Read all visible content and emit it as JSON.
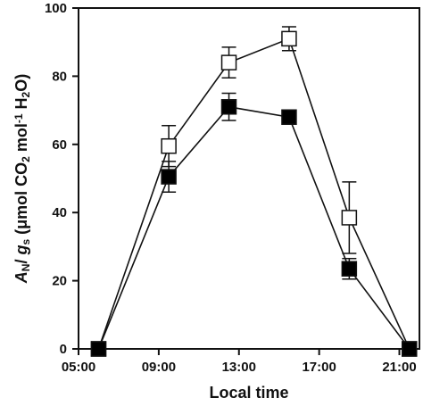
{
  "chart_data": {
    "type": "line",
    "xlabel": "Local time",
    "ylabel": {
      "parts": [
        {
          "text": "A",
          "style": "italic"
        },
        {
          "text": "N",
          "style": "sub"
        },
        {
          "text": "/ ",
          "style": "normal"
        },
        {
          "text": "g",
          "style": "italic"
        },
        {
          "text": "s",
          "style": "sub"
        },
        {
          "text": " (μmol CO",
          "style": "normal"
        },
        {
          "text": "2",
          "style": "sub"
        },
        {
          "text": " mol",
          "style": "normal"
        },
        {
          "text": "-1",
          "style": "sup"
        },
        {
          "text": " H",
          "style": "normal"
        },
        {
          "text": "2",
          "style": "sub"
        },
        {
          "text": "O)",
          "style": "normal"
        }
      ]
    },
    "x_tick_labels": [
      "05:00",
      "09:00",
      "13:00",
      "17:00",
      "21:00"
    ],
    "x_tick_values": [
      5,
      9,
      13,
      17,
      21
    ],
    "y_tick_labels": [
      "0",
      "20",
      "40",
      "60",
      "80",
      "100"
    ],
    "y_tick_values": [
      0,
      20,
      40,
      60,
      80,
      100
    ],
    "xlim": [
      5,
      22
    ],
    "ylim": [
      0,
      100
    ],
    "grid": false,
    "series": [
      {
        "marker": "open-square",
        "color": "#ffffff",
        "points": [
          {
            "x": 6.0,
            "y": 0,
            "err": 0
          },
          {
            "x": 9.5,
            "y": 59.5,
            "err": 6
          },
          {
            "x": 12.5,
            "y": 84,
            "err": 4.5
          },
          {
            "x": 15.5,
            "y": 91,
            "err": 3.5
          },
          {
            "x": 18.5,
            "y": 38.5,
            "err": 10.5
          },
          {
            "x": 21.5,
            "y": 0,
            "err": 0
          }
        ]
      },
      {
        "marker": "filled-square",
        "color": "#000000",
        "points": [
          {
            "x": 6.0,
            "y": 0,
            "err": 0
          },
          {
            "x": 9.5,
            "y": 50.5,
            "err": 4.5
          },
          {
            "x": 12.5,
            "y": 71,
            "err": 4
          },
          {
            "x": 15.5,
            "y": 68,
            "err": 1.5
          },
          {
            "x": 18.5,
            "y": 23.5,
            "err": 3
          },
          {
            "x": 21.5,
            "y": 0,
            "err": 0
          }
        ]
      }
    ]
  }
}
